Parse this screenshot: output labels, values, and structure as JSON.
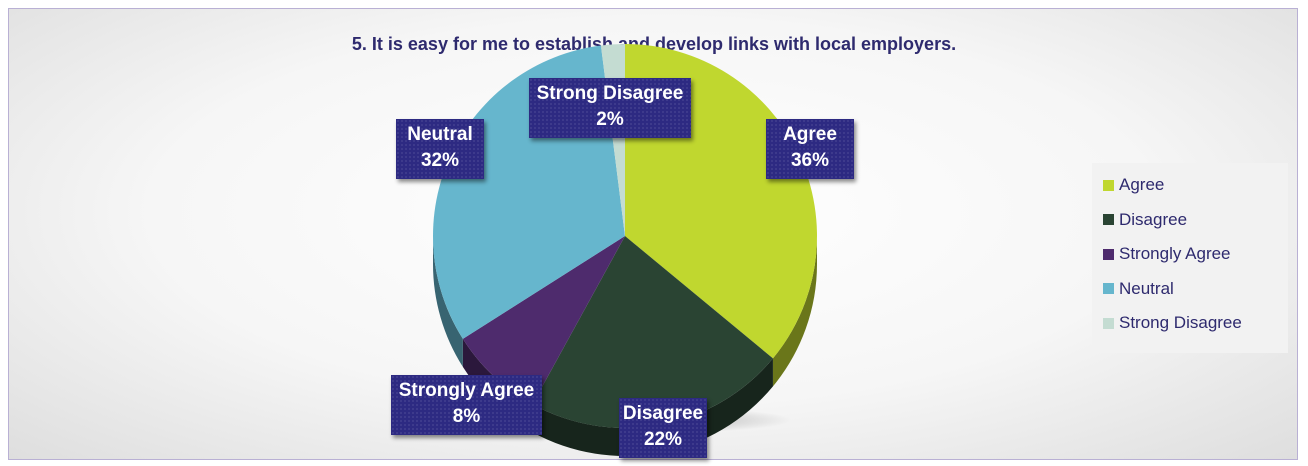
{
  "chart_data": {
    "type": "pie",
    "title": "5. It is easy for me to establish and develop links with local employers.",
    "slices": [
      {
        "name": "Agree",
        "value": 36,
        "label": "36%",
        "color": "#c0d72f"
      },
      {
        "name": "Disagree",
        "value": 22,
        "label": "22%",
        "color": "#2a4433"
      },
      {
        "name": "Strongly Agree",
        "value": 8,
        "label": "8%",
        "color": "#4e2b6d"
      },
      {
        "name": "Neutral",
        "value": 32,
        "label": "32%",
        "color": "#66b6cd"
      },
      {
        "name": "Strong Disagree",
        "value": 2,
        "label": "2%",
        "color": "#c4dcd2"
      }
    ],
    "legend_position": "right",
    "data_label_background": "#2d2a82",
    "style": "3d-pie"
  }
}
